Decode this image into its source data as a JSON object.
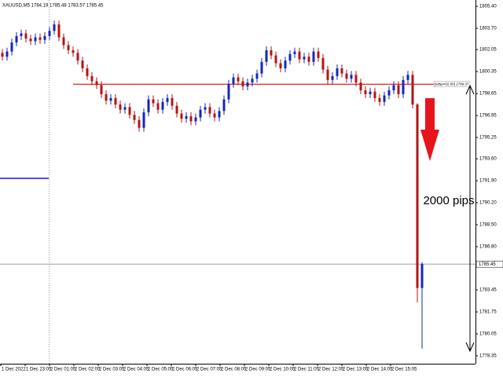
{
  "chart_data": {
    "type": "candlestick",
    "title": "XAUUSD,M5 1784.19 1785.48 1783.57 1785.45",
    "categories": [
      "1 Dec 2022",
      "1 Dec 23:05",
      "2 Dec 01:05",
      "2 Dec 02:05",
      "2 Dec 03:05",
      "2 Dec 04:05",
      "2 Dec 05:05",
      "2 Dec 06:05",
      "2 Dec 07:05",
      "2 Dec 08:05",
      "2 Dec 09:05",
      "2 Dec 10:05",
      "2 Dec 11:05",
      "2 Dec 12:05",
      "2 Dec 13:05",
      "2 Dec 14:05",
      "2 Dec 15:05"
    ],
    "open": [
      1801.8,
      1801.5,
      1801.9,
      1802.6,
      1803.1,
      1803.3,
      1802.9,
      1802.7,
      1803.0,
      1802.8,
      1803.1,
      1803.5,
      1804.0,
      1803.0,
      1802.4,
      1802.0,
      1801.8,
      1801.2,
      1800.6,
      1800.0,
      1799.6,
      1799.3,
      1798.6,
      1798.1,
      1798.3,
      1797.8,
      1797.4,
      1797.6,
      1797.0,
      1796.6,
      1796.0,
      1797.2,
      1798.2,
      1797.9,
      1797.4,
      1798.0,
      1798.3,
      1797.7,
      1797.1,
      1796.7,
      1796.9,
      1796.5,
      1796.8,
      1797.4,
      1797.6,
      1797.1,
      1796.8,
      1797.3,
      1798.2,
      1799.4,
      1799.9,
      1799.6,
      1799.2,
      1799.5,
      1799.8,
      1800.2,
      1801.1,
      1802.0,
      1801.6,
      1801.0,
      1800.6,
      1801.2,
      1801.7,
      1801.9,
      1801.3,
      1801.5,
      1801.1,
      1801.9,
      1801.4,
      1800.5,
      1799.7,
      1800.0,
      1800.6,
      1800.2,
      1799.8,
      1800.1,
      1799.5,
      1798.9,
      1798.6,
      1798.8,
      1798.3,
      1798.0,
      1798.5,
      1798.9,
      1799.3,
      1798.6,
      1799.7,
      1800.1,
      1797.8,
      1783.6
    ],
    "high": [
      1802.1,
      1802.2,
      1802.9,
      1803.4,
      1803.6,
      1803.6,
      1803.2,
      1803.3,
      1803.3,
      1803.4,
      1803.8,
      1804.3,
      1804.3,
      1803.3,
      1802.7,
      1802.3,
      1802.1,
      1801.5,
      1800.9,
      1800.3,
      1799.9,
      1799.6,
      1798.9,
      1798.6,
      1798.6,
      1798.1,
      1797.9,
      1797.9,
      1797.3,
      1796.9,
      1797.5,
      1798.5,
      1798.5,
      1798.2,
      1798.3,
      1798.6,
      1798.6,
      1798.0,
      1797.4,
      1797.2,
      1797.2,
      1797.1,
      1797.7,
      1797.9,
      1797.9,
      1797.4,
      1797.6,
      1798.5,
      1799.7,
      1800.2,
      1800.2,
      1799.9,
      1799.8,
      1800.1,
      1800.5,
      1801.4,
      1802.3,
      1802.3,
      1801.9,
      1801.3,
      1801.5,
      1802.0,
      1802.2,
      1802.2,
      1801.8,
      1801.8,
      1802.2,
      1802.2,
      1801.7,
      1800.8,
      1800.3,
      1800.9,
      1800.9,
      1800.5,
      1800.4,
      1800.4,
      1799.8,
      1799.2,
      1799.1,
      1799.1,
      1798.6,
      1798.8,
      1799.2,
      1799.6,
      1799.6,
      1800.0,
      1800.4,
      1800.4,
      1797.9,
      1785.6
    ],
    "low": [
      1801.2,
      1801.2,
      1801.6,
      1802.3,
      1802.8,
      1802.6,
      1802.4,
      1802.4,
      1802.5,
      1802.5,
      1802.8,
      1803.2,
      1802.7,
      1802.1,
      1801.7,
      1801.5,
      1800.9,
      1800.3,
      1799.7,
      1799.3,
      1799.0,
      1798.3,
      1797.8,
      1797.8,
      1797.5,
      1797.1,
      1797.1,
      1796.7,
      1796.3,
      1795.7,
      1795.7,
      1796.9,
      1797.6,
      1797.1,
      1797.1,
      1797.7,
      1797.4,
      1796.8,
      1796.4,
      1796.4,
      1796.2,
      1796.2,
      1796.5,
      1797.1,
      1796.8,
      1796.5,
      1796.5,
      1797.0,
      1797.9,
      1799.1,
      1799.3,
      1798.9,
      1798.9,
      1799.2,
      1799.5,
      1799.9,
      1800.8,
      1801.3,
      1800.7,
      1800.3,
      1800.3,
      1800.9,
      1801.4,
      1801.0,
      1801.0,
      1800.8,
      1800.8,
      1801.1,
      1800.2,
      1799.4,
      1799.4,
      1799.7,
      1799.9,
      1799.5,
      1799.5,
      1799.2,
      1798.6,
      1798.3,
      1798.3,
      1798.0,
      1797.7,
      1797.7,
      1798.2,
      1798.6,
      1798.3,
      1798.3,
      1799.4,
      1797.5,
      1782.5,
      1778.9
    ],
    "close": [
      1801.5,
      1801.9,
      1802.6,
      1803.1,
      1803.3,
      1802.9,
      1802.7,
      1803.0,
      1802.8,
      1803.1,
      1803.5,
      1804.0,
      1803.0,
      1802.4,
      1802.0,
      1801.8,
      1801.2,
      1800.6,
      1800.0,
      1799.6,
      1799.3,
      1798.6,
      1798.1,
      1798.3,
      1797.8,
      1797.4,
      1797.6,
      1797.0,
      1796.6,
      1796.0,
      1797.2,
      1798.2,
      1797.9,
      1797.4,
      1798.0,
      1798.3,
      1797.7,
      1797.1,
      1796.7,
      1796.9,
      1796.5,
      1796.8,
      1797.4,
      1797.6,
      1797.1,
      1796.8,
      1797.3,
      1798.2,
      1799.4,
      1799.9,
      1799.6,
      1799.2,
      1799.5,
      1799.8,
      1800.2,
      1801.1,
      1802.0,
      1801.6,
      1801.0,
      1800.6,
      1801.2,
      1801.7,
      1801.9,
      1801.3,
      1801.5,
      1801.1,
      1801.9,
      1801.4,
      1800.5,
      1799.7,
      1800.0,
      1800.6,
      1800.2,
      1799.8,
      1800.1,
      1799.5,
      1798.9,
      1798.6,
      1798.8,
      1798.3,
      1798.0,
      1798.5,
      1798.9,
      1799.3,
      1798.6,
      1799.7,
      1800.1,
      1797.8,
      1783.6,
      1785.45
    ],
    "up_color": "#1428b4",
    "down_color": "#b41414",
    "ylim": [
      1777.74,
      1805.89
    ],
    "yticks": [
      {
        "value": 1805.4,
        "label": "1805.40"
      },
      {
        "value": 1803.7,
        "label": "1803.70"
      },
      1802.05,
      1800.35,
      1798.65,
      1796.95,
      1795.25,
      {
        "value": 1793.6,
        "label": "1793.60"
      },
      {
        "value": 1791.9,
        "label": "1791.90"
      },
      {
        "value": 1790.2,
        "label": "1790.20"
      },
      {
        "value": 1788.5,
        "label": "1788.50"
      },
      {
        "value": 1786.8,
        "label": "1786.80"
      },
      1783.45,
      1781.75,
      1780.05,
      1778.35
    ],
    "current_price": 1785.45,
    "resistance": {
      "value": 1799.37,
      "label": "[sdsp>02.00] 1799.37",
      "color": "#e02020"
    },
    "support": {
      "value": 1792.09,
      "color": "#1a1ae0"
    },
    "annotation": "2000 pips"
  }
}
